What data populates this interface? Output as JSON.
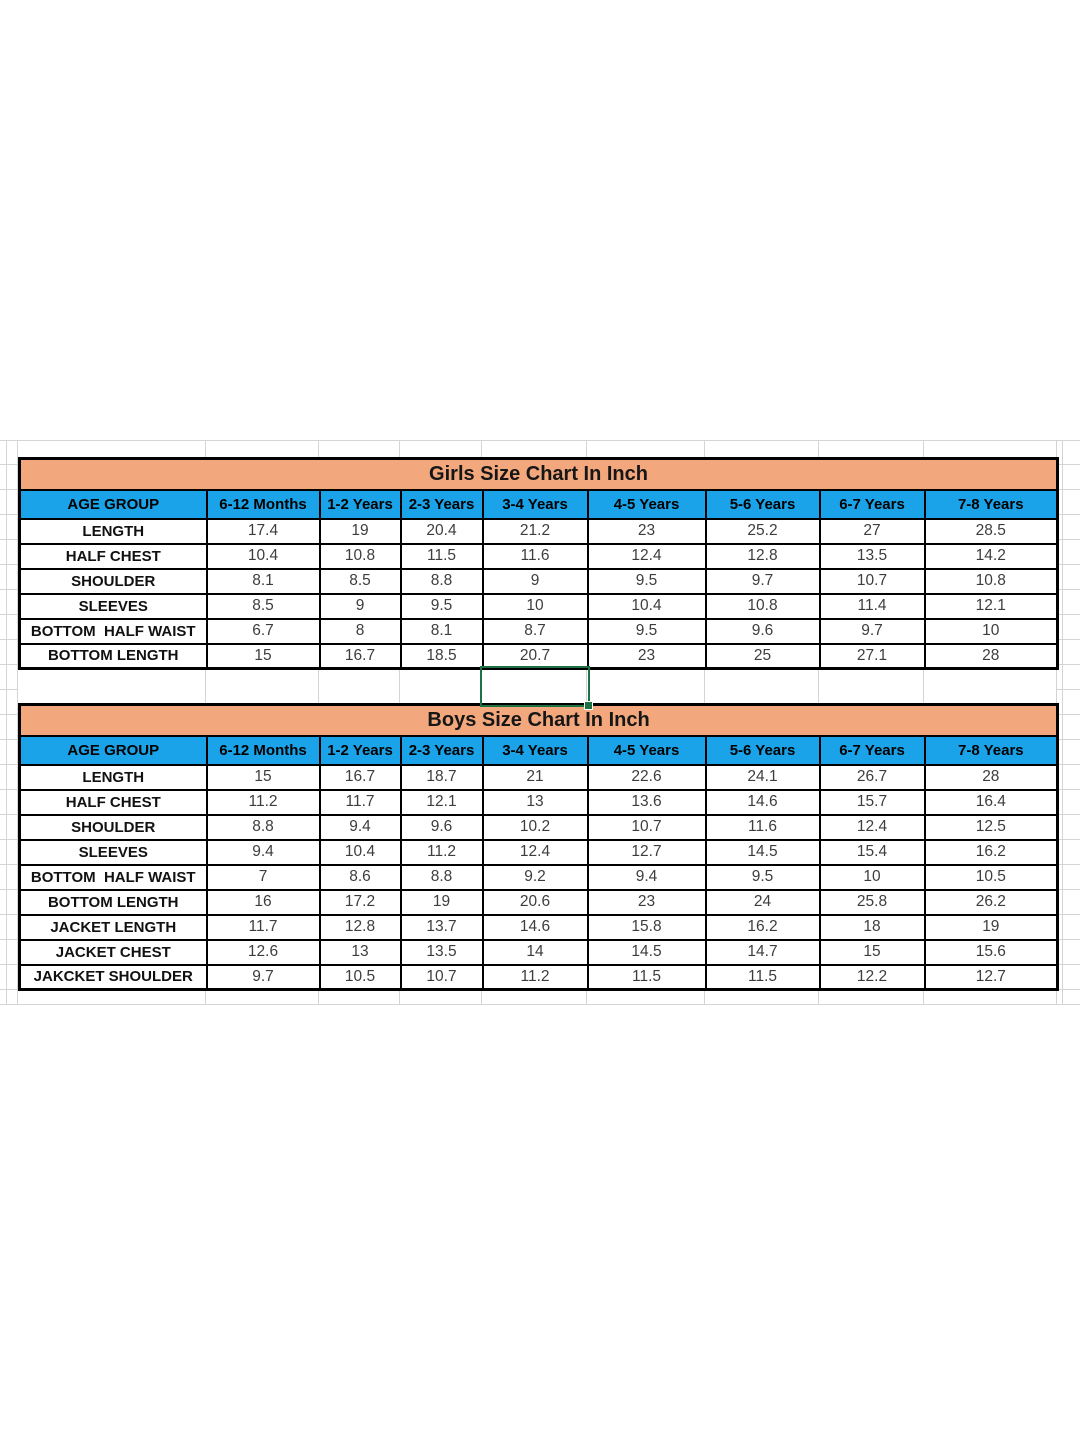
{
  "colors": {
    "title_bg": "#F2A87C",
    "header_bg": "#1AA3E8",
    "table_border": "#000000",
    "selection_green": "#1E7145",
    "gridline": "#D4D4D4",
    "value_text": "#3D3D3D",
    "label_text": "#111111"
  },
  "girls": {
    "title": "Girls Size Chart In Inch",
    "header": [
      "AGE GROUP",
      "6-12 Months",
      "1-2 Years",
      "2-3 Years",
      "3-4 Years",
      "4-5 Years",
      "5-6 Years",
      "6-7 Years",
      "7-8 Years"
    ],
    "rows": [
      {
        "label": "LENGTH",
        "values": [
          "17.4",
          "19",
          "20.4",
          "21.2",
          "23",
          "25.2",
          "27",
          "28.5"
        ]
      },
      {
        "label": "HALF CHEST",
        "values": [
          "10.4",
          "10.8",
          "11.5",
          "11.6",
          "12.4",
          "12.8",
          "13.5",
          "14.2"
        ]
      },
      {
        "label": "SHOULDER",
        "values": [
          "8.1",
          "8.5",
          "8.8",
          "9",
          "9.5",
          "9.7",
          "10.7",
          "10.8"
        ]
      },
      {
        "label": "SLEEVES",
        "values": [
          "8.5",
          "9",
          "9.5",
          "10",
          "10.4",
          "10.8",
          "11.4",
          "12.1"
        ]
      },
      {
        "label": "BOTTOM  HALF WAIST",
        "values": [
          "6.7",
          "8",
          "8.1",
          "8.7",
          "9.5",
          "9.6",
          "9.7",
          "10"
        ]
      },
      {
        "label": "BOTTOM LENGTH",
        "values": [
          "15",
          "16.7",
          "18.5",
          "20.7",
          "23",
          "25",
          "27.1",
          "28"
        ]
      }
    ]
  },
  "boys": {
    "title": "Boys Size Chart In Inch",
    "header": [
      "AGE GROUP",
      "6-12 Months",
      "1-2 Years",
      "2-3 Years",
      "3-4 Years",
      "4-5 Years",
      "5-6 Years",
      "6-7 Years",
      "7-8 Years"
    ],
    "rows": [
      {
        "label": "LENGTH",
        "values": [
          "15",
          "16.7",
          "18.7",
          "21",
          "22.6",
          "24.1",
          "26.7",
          "28"
        ]
      },
      {
        "label": "HALF CHEST",
        "values": [
          "11.2",
          "11.7",
          "12.1",
          "13",
          "13.6",
          "14.6",
          "15.7",
          "16.4"
        ]
      },
      {
        "label": "SHOULDER",
        "values": [
          "8.8",
          "9.4",
          "9.6",
          "10.2",
          "10.7",
          "11.6",
          "12.4",
          "12.5"
        ]
      },
      {
        "label": "SLEEVES",
        "values": [
          "9.4",
          "10.4",
          "11.2",
          "12.4",
          "12.7",
          "14.5",
          "15.4",
          "16.2"
        ]
      },
      {
        "label": "BOTTOM  HALF WAIST",
        "values": [
          "7",
          "8.6",
          "8.8",
          "9.2",
          "9.4",
          "9.5",
          "10",
          "10.5"
        ]
      },
      {
        "label": "BOTTOM LENGTH",
        "values": [
          "16",
          "17.2",
          "19",
          "20.6",
          "23",
          "24",
          "25.8",
          "26.2"
        ]
      },
      {
        "label": "JACKET LENGTH",
        "values": [
          "11.7",
          "12.8",
          "13.7",
          "14.6",
          "15.8",
          "16.2",
          "18",
          "19"
        ]
      },
      {
        "label": "JACKET CHEST",
        "values": [
          "12.6",
          "13",
          "13.5",
          "14",
          "14.5",
          "14.7",
          "15",
          "15.6"
        ]
      },
      {
        "label": "JAKCKET SHOULDER",
        "values": [
          "9.7",
          "10.5",
          "10.7",
          "11.2",
          "11.5",
          "11.5",
          "12.2",
          "12.7"
        ]
      }
    ]
  }
}
